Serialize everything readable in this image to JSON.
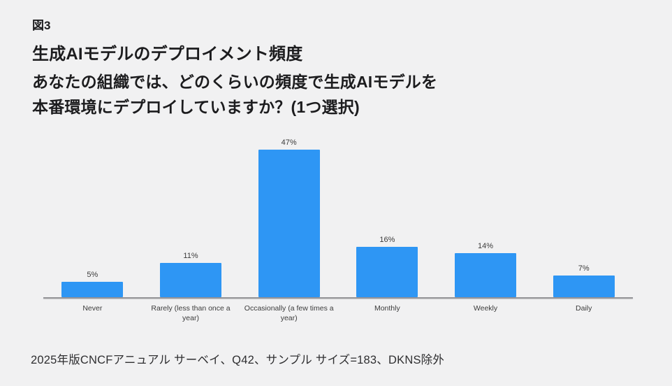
{
  "page": {
    "figure_label": "図3",
    "title": "生成AIモデルのデプロイメント頻度",
    "question_line1": "あなたの組織では、どのくらいの頻度で生成AIモデルを",
    "question_line2": "本番環境にデプロイしていますか？(1つ選択)",
    "footnote": "2025年版CNCFアニュアル サーベイ、Q42、サンプル サイズ=183、DKNS除外"
  },
  "chart_data": {
    "type": "bar",
    "title": "生成AIモデルのデプロイメント頻度",
    "categories": [
      "Never",
      "Rarely (less than once a year)",
      "Occasionally (a few times a year)",
      "Monthly",
      "Weekly",
      "Daily"
    ],
    "values": [
      5,
      11,
      47,
      16,
      14,
      7
    ],
    "value_labels": [
      "5%",
      "11%",
      "47%",
      "16%",
      "14%",
      "7%"
    ],
    "xlabel": "",
    "ylabel": "",
    "ylim": [
      0,
      50
    ],
    "grid": false,
    "legend": false,
    "bar_color": "#2e96f4",
    "axis_color": "#949498",
    "background_color": "#f1f1f2",
    "label_color": "#3b3b3b"
  }
}
